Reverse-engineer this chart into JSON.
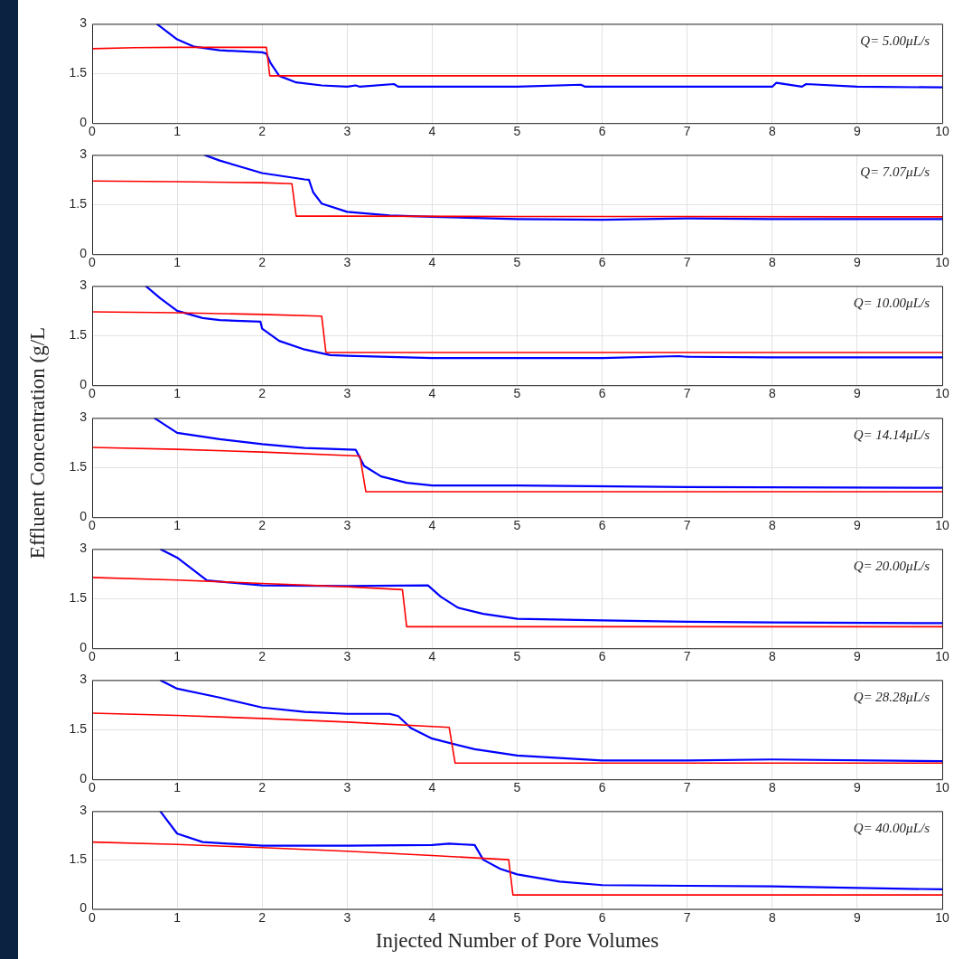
{
  "chart_data": [
    {
      "type": "line",
      "annotations": [
        "Q= 5.00μL/s"
      ],
      "xlim": [
        0,
        10
      ],
      "xticks": [
        0,
        1,
        2,
        3,
        4,
        5,
        6,
        7,
        8,
        9,
        10
      ],
      "ylim": [
        0,
        3
      ],
      "yticks": [
        0,
        1.5,
        3
      ],
      "grid": true,
      "legend": false,
      "marker": "none",
      "series": [
        {
          "color": "#ff0000",
          "x": [
            0,
            0.5,
            1,
            1.5,
            2.05,
            2.09,
            3,
            5,
            7,
            9,
            10
          ],
          "values": [
            2.25,
            2.28,
            2.29,
            2.29,
            2.29,
            1.43,
            1.43,
            1.43,
            1.43,
            1.43,
            1.43
          ]
        },
        {
          "color": "#0000ff",
          "x": [
            0.76,
            1,
            1.2,
            1.5,
            2,
            2.05,
            2.1,
            2.2,
            2.4,
            2.7,
            3,
            3.1,
            3.15,
            3.55,
            3.6,
            4,
            5,
            5.75,
            5.8,
            7,
            8,
            8.05,
            8.35,
            8.4,
            9,
            10
          ],
          "values": [
            3,
            2.53,
            2.31,
            2.2,
            2.14,
            2.1,
            1.81,
            1.43,
            1.23,
            1.14,
            1.1,
            1.14,
            1.1,
            1.18,
            1.1,
            1.1,
            1.1,
            1.16,
            1.1,
            1.1,
            1.1,
            1.22,
            1.1,
            1.18,
            1.1,
            1.08
          ]
        }
      ]
    },
    {
      "type": "line",
      "annotations": [
        "Q= 7.07μL/s"
      ],
      "xlim": [
        0,
        10
      ],
      "xticks": [
        0,
        1,
        2,
        3,
        4,
        5,
        6,
        7,
        8,
        9,
        10
      ],
      "ylim": [
        0,
        3
      ],
      "yticks": [
        0,
        1.5,
        3
      ],
      "grid": true,
      "legend": false,
      "marker": "none",
      "series": [
        {
          "color": "#ff0000",
          "x": [
            0,
            1,
            2,
            2.35,
            2.4,
            3,
            5,
            7,
            9,
            10
          ],
          "values": [
            2.21,
            2.19,
            2.16,
            2.13,
            1.15,
            1.15,
            1.14,
            1.14,
            1.13,
            1.13
          ]
        },
        {
          "color": "#0000ff",
          "x": [
            1.32,
            1.5,
            2,
            2.5,
            2.55,
            2.6,
            2.7,
            3,
            3.5,
            4,
            5,
            6,
            7,
            8,
            10
          ],
          "values": [
            3,
            2.83,
            2.45,
            2.26,
            2.25,
            1.87,
            1.53,
            1.28,
            1.17,
            1.13,
            1.06,
            1.04,
            1.08,
            1.06,
            1.06
          ]
        }
      ]
    },
    {
      "type": "line",
      "ylabel": "Effluent Concentration (g/L",
      "annotations": [
        "Q= 10.00μL/s"
      ],
      "xlim": [
        0,
        10
      ],
      "xticks": [
        0,
        1,
        2,
        3,
        4,
        5,
        6,
        7,
        8,
        9,
        10
      ],
      "ylim": [
        0,
        3
      ],
      "yticks": [
        0,
        1.5,
        3
      ],
      "grid": true,
      "legend": false,
      "marker": "none",
      "series": [
        {
          "color": "#ff0000",
          "x": [
            0,
            1,
            2,
            2.7,
            2.75,
            4,
            6,
            8,
            10
          ],
          "values": [
            2.22,
            2.19,
            2.14,
            2.09,
            0.99,
            0.99,
            0.99,
            0.99,
            0.99
          ]
        },
        {
          "color": "#0000ff",
          "x": [
            0.63,
            0.8,
            1,
            1.3,
            1.5,
            1.98,
            2,
            2.2,
            2.5,
            2.8,
            3,
            4,
            5,
            6,
            6.9,
            7,
            8,
            10
          ],
          "values": [
            3,
            2.63,
            2.25,
            2.03,
            1.97,
            1.92,
            1.71,
            1.34,
            1.08,
            0.91,
            0.89,
            0.82,
            0.82,
            0.82,
            0.88,
            0.86,
            0.84,
            0.84
          ]
        }
      ]
    },
    {
      "type": "line",
      "annotations": [
        "Q= 14.14μL/s"
      ],
      "xlim": [
        0,
        10
      ],
      "xticks": [
        0,
        1,
        2,
        3,
        4,
        5,
        6,
        7,
        8,
        9,
        10
      ],
      "ylim": [
        0,
        3
      ],
      "yticks": [
        0,
        1.5,
        3
      ],
      "grid": true,
      "legend": false,
      "marker": "none",
      "series": [
        {
          "color": "#ff0000",
          "x": [
            0,
            1,
            2,
            3.15,
            3.22,
            4,
            6,
            8,
            10
          ],
          "values": [
            2.11,
            2.05,
            1.97,
            1.85,
            0.77,
            0.77,
            0.77,
            0.77,
            0.77
          ]
        },
        {
          "color": "#0000ff",
          "x": [
            0.73,
            1,
            1.5,
            2,
            2.5,
            3.1,
            3.2,
            3.4,
            3.7,
            4,
            5,
            7,
            10
          ],
          "values": [
            3,
            2.55,
            2.36,
            2.21,
            2.09,
            2.04,
            1.55,
            1.23,
            1.04,
            0.96,
            0.96,
            0.91,
            0.89
          ]
        }
      ]
    },
    {
      "type": "line",
      "annotations": [
        "Q= 20.00μL/s"
      ],
      "xlim": [
        0,
        10
      ],
      "xticks": [
        0,
        1,
        2,
        3,
        4,
        5,
        6,
        7,
        8,
        9,
        10
      ],
      "ylim": [
        0,
        3
      ],
      "yticks": [
        0,
        1.5,
        3
      ],
      "grid": true,
      "legend": false,
      "marker": "none",
      "series": [
        {
          "color": "#ff0000",
          "x": [
            0,
            1,
            2,
            3,
            3.65,
            3.7,
            5,
            7,
            10
          ],
          "values": [
            2.14,
            2.06,
            1.96,
            1.86,
            1.77,
            0.65,
            0.65,
            0.65,
            0.65
          ]
        },
        {
          "color": "#0000ff",
          "x": [
            0.8,
            1,
            1.35,
            2,
            3,
            3.95,
            4.1,
            4.3,
            4.6,
            5,
            6,
            7,
            8,
            10
          ],
          "values": [
            3,
            2.74,
            2.05,
            1.9,
            1.88,
            1.9,
            1.56,
            1.23,
            1.04,
            0.89,
            0.84,
            0.8,
            0.78,
            0.76
          ]
        }
      ]
    },
    {
      "type": "line",
      "annotations": [
        "Q= 28.28μL/s"
      ],
      "xlim": [
        0,
        10
      ],
      "xticks": [
        0,
        1,
        2,
        3,
        4,
        5,
        6,
        7,
        8,
        9,
        10
      ],
      "ylim": [
        0,
        3
      ],
      "yticks": [
        0,
        1.5,
        3
      ],
      "grid": true,
      "legend": false,
      "marker": "none",
      "series": [
        {
          "color": "#ff0000",
          "x": [
            0,
            1,
            2,
            3,
            4.2,
            4.27,
            6,
            8,
            10
          ],
          "values": [
            2,
            1.93,
            1.84,
            1.73,
            1.57,
            0.49,
            0.49,
            0.49,
            0.49
          ]
        },
        {
          "color": "#0000ff",
          "x": [
            0.8,
            1,
            1.5,
            2,
            2.5,
            3,
            3.5,
            3.6,
            3.75,
            4,
            4.5,
            5,
            6,
            7,
            8,
            10
          ],
          "values": [
            3,
            2.74,
            2.47,
            2.17,
            2.04,
            1.98,
            1.98,
            1.91,
            1.55,
            1.23,
            0.91,
            0.72,
            0.57,
            0.57,
            0.6,
            0.55
          ]
        }
      ]
    },
    {
      "type": "line",
      "xlabel": "Injected Number of Pore Volumes",
      "annotations": [
        "Q= 40.00μL/s"
      ],
      "xlim": [
        0,
        10
      ],
      "xticks": [
        0,
        1,
        2,
        3,
        4,
        5,
        6,
        7,
        8,
        9,
        10
      ],
      "ylim": [
        0,
        3
      ],
      "yticks": [
        0,
        1.5,
        3
      ],
      "grid": true,
      "legend": false,
      "marker": "none",
      "series": [
        {
          "color": "#ff0000",
          "x": [
            0,
            1,
            2,
            3,
            4,
            4.9,
            4.95,
            6,
            8,
            10
          ],
          "values": [
            2.05,
            1.98,
            1.88,
            1.77,
            1.64,
            1.51,
            0.43,
            0.43,
            0.43,
            0.43
          ]
        },
        {
          "color": "#0000ff",
          "x": [
            0.8,
            1,
            1.3,
            2,
            3,
            4,
            4.2,
            4.5,
            4.6,
            4.8,
            5,
            5.5,
            6,
            7,
            8,
            10
          ],
          "values": [
            3,
            2.31,
            2.05,
            1.94,
            1.94,
            1.96,
            2,
            1.96,
            1.51,
            1.23,
            1.06,
            0.84,
            0.73,
            0.71,
            0.69,
            0.6
          ]
        }
      ]
    }
  ]
}
